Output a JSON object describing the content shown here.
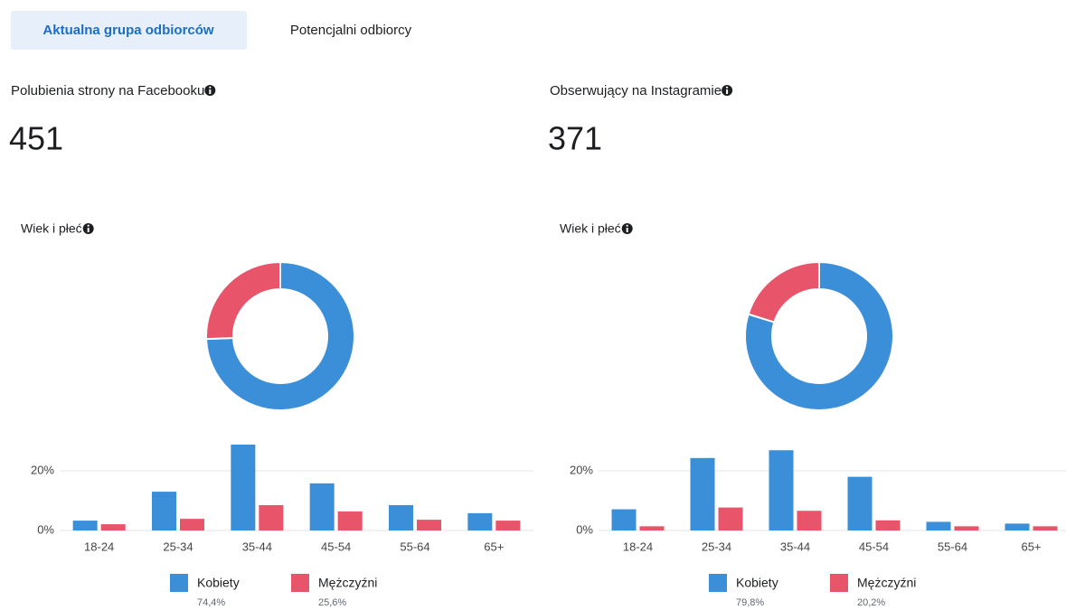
{
  "tabs": [
    "Aktualna grupa odbiorców",
    "Potencjalni odbiorcy"
  ],
  "panels": [
    {
      "metric_label": "Polubienia strony na Facebooku",
      "metric_value": 451,
      "section_title": "Wiek i płeć"
    },
    {
      "metric_label": "Obserwujący na Instagramie",
      "metric_value": 371,
      "section_title": "Wiek i płeć"
    }
  ],
  "chart_data": [
    {
      "type": "pie",
      "donut": true,
      "values": [
        74.4,
        25.6
      ],
      "value_labels": [
        "74,4%",
        "25,6%"
      ],
      "colors": [
        "#3b8ed8",
        "#e8546a"
      ]
    },
    {
      "type": "bar",
      "categories": [
        "18-24",
        "25-34",
        "35-44",
        "45-54",
        "55-64",
        "65+"
      ],
      "series": [
        {
          "name": "Kobiety",
          "color": "#3b8ed8",
          "values": [
            3.3,
            13.0,
            28.8,
            15.8,
            8.5,
            5.8
          ]
        },
        {
          "name": "Mężczyźni",
          "color": "#e8546a",
          "values": [
            2.1,
            3.9,
            8.5,
            6.4,
            3.6,
            3.3
          ]
        }
      ],
      "ylim": [
        0,
        30
      ],
      "yticks": [
        {
          "value": 0,
          "label": "0%"
        },
        {
          "value": 20,
          "label": "20%"
        }
      ],
      "grid": true
    },
    {
      "type": "pie",
      "donut": true,
      "values": [
        79.8,
        20.2
      ],
      "value_labels": [
        "79,8%",
        "20,2%"
      ],
      "colors": [
        "#3b8ed8",
        "#e8546a"
      ]
    },
    {
      "type": "bar",
      "categories": [
        "18-24",
        "25-34",
        "35-44",
        "45-54",
        "55-64",
        "65+"
      ],
      "series": [
        {
          "name": "Kobiety",
          "color": "#3b8ed8",
          "values": [
            7.1,
            24.3,
            26.9,
            18.0,
            2.9,
            2.3
          ]
        },
        {
          "name": "Mężczyźni",
          "color": "#e8546a",
          "values": [
            1.4,
            7.7,
            6.6,
            3.4,
            1.4,
            1.4
          ]
        }
      ],
      "ylim": [
        0,
        30
      ],
      "yticks": [
        {
          "value": 0,
          "label": "0%"
        },
        {
          "value": 20,
          "label": "20%"
        }
      ],
      "grid": true
    }
  ]
}
